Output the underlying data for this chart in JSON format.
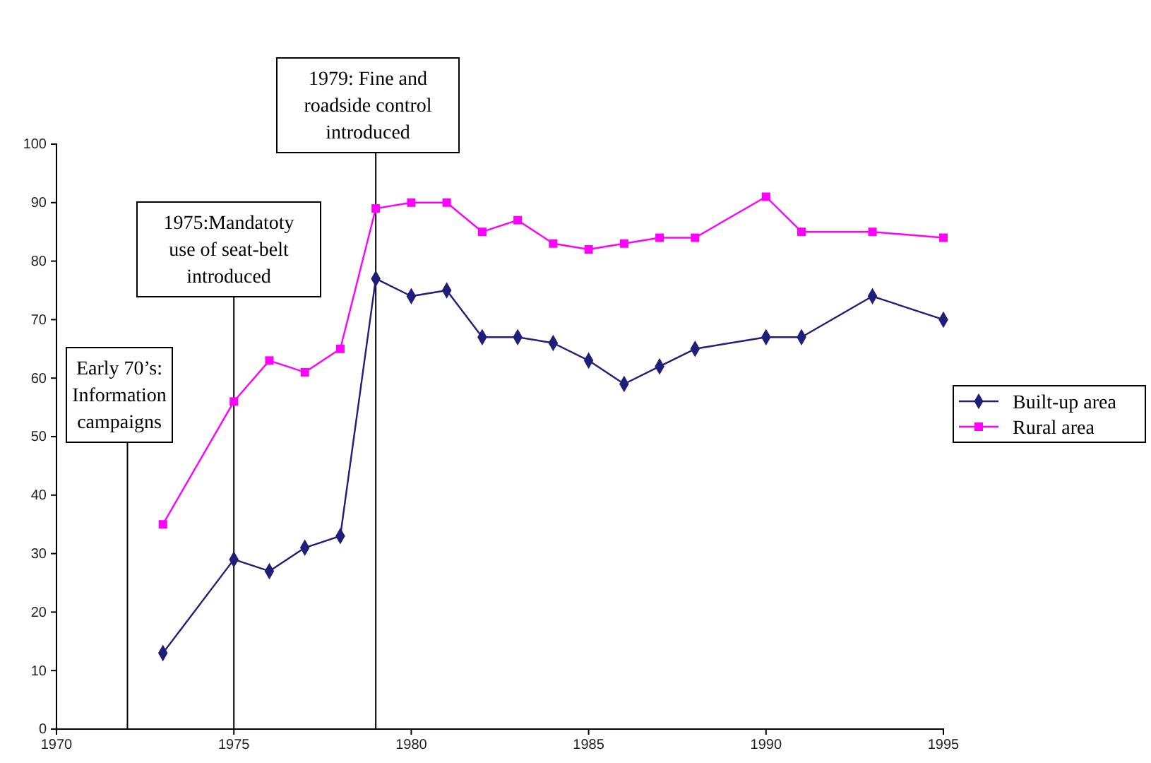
{
  "chart_data": {
    "type": "line",
    "x": [
      1973,
      1975,
      1976,
      1977,
      1978,
      1979,
      1980,
      1981,
      1982,
      1983,
      1984,
      1985,
      1986,
      1987,
      1988,
      1990,
      1991,
      1993,
      1995
    ],
    "series": [
      {
        "name": "Built-up area",
        "color": "#1f1f7a",
        "marker": "diamond",
        "values": [
          13,
          29,
          27,
          31,
          33,
          77,
          74,
          75,
          67,
          67,
          66,
          63,
          59,
          62,
          65,
          67,
          67,
          74,
          70
        ]
      },
      {
        "name": "Rural area",
        "color": "#ff00ff",
        "marker": "square",
        "values": [
          35,
          56,
          63,
          61,
          65,
          89,
          90,
          90,
          85,
          87,
          83,
          82,
          83,
          84,
          84,
          91,
          85,
          85,
          84
        ]
      }
    ],
    "xlim": [
      1970,
      1995
    ],
    "xticks": [
      1970,
      1975,
      1980,
      1985,
      1990,
      1995
    ],
    "ylim": [
      0,
      100
    ],
    "yticks": [
      0,
      10,
      20,
      30,
      40,
      50,
      60,
      70,
      80,
      90,
      100
    ],
    "grid": false,
    "legend": "right",
    "ref_lines": [
      {
        "axis": "x",
        "value": 1972,
        "label": "Early 70’s: Information campaigns"
      },
      {
        "axis": "x",
        "value": 1975,
        "label": "1975:Mandatoty use of seat-belt introduced"
      },
      {
        "axis": "x",
        "value": 1979,
        "label": "1979: Fine and roadside control introduced"
      }
    ]
  }
}
